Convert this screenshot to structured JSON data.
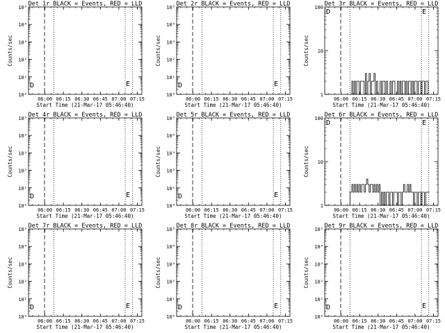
{
  "window": {
    "title": ""
  },
  "xlabel": "Start Time (21-Mar-17 05:46:40)",
  "ylabel": "Counts/sec",
  "x_tick_labels": [
    "06:00",
    "06:15",
    "06:30",
    "06:45",
    "07:00",
    "07:15"
  ],
  "markers": {
    "start": "D",
    "end": "E"
  },
  "chart_data": [
    {
      "type": "line",
      "title": "Det 1r BLACK = Events, RED = LLD",
      "yscale": "log",
      "ylim": [
        1,
        100000
      ],
      "y_tick_labels": [
        "10⁰",
        "10¹",
        "10²",
        "10³",
        "10⁴",
        "10⁵"
      ],
      "xlim_min": [
        0,
        92
      ],
      "vlines_min": [
        13,
        20.5,
        78.5,
        84.5
      ],
      "series": []
    },
    {
      "type": "line",
      "title": "Det 2r BLACK = Events, RED = LLD",
      "yscale": "log",
      "ylim": [
        1,
        100000
      ],
      "y_tick_labels": [
        "10⁰",
        "10¹",
        "10²",
        "10³",
        "10⁴",
        "10⁵"
      ],
      "xlim_min": [
        0,
        92
      ],
      "vlines_min": [
        13,
        20.5,
        78.5,
        84.5
      ],
      "series": []
    },
    {
      "type": "line",
      "title": "Det 3r BLACK = Events, RED = LLD",
      "yscale": "log",
      "ylim": [
        1,
        100
      ],
      "y_tick_labels": [
        "1",
        "10",
        "100"
      ],
      "xlim_min": [
        0,
        92
      ],
      "vlines_min": [
        13,
        20.5,
        78.5,
        84.5
      ],
      "series": [
        {
          "x_min": [
            20.5,
            22,
            23,
            24,
            25,
            26,
            27,
            28,
            29,
            30,
            31,
            32,
            33,
            34,
            35,
            36,
            37,
            38,
            39,
            40,
            41,
            42,
            43,
            44,
            45,
            46,
            47,
            48,
            49,
            50,
            51,
            52,
            53,
            54,
            55,
            56,
            57,
            58,
            59,
            60,
            61,
            62,
            63,
            64,
            65,
            66,
            67,
            68,
            69,
            70,
            71,
            72,
            73,
            74,
            75,
            76,
            77,
            78,
            79,
            80,
            81,
            82,
            83,
            84,
            85
          ],
          "y": [
            1,
            2,
            1,
            2,
            1,
            2,
            2,
            1,
            2,
            2,
            2,
            1,
            3,
            1,
            2,
            3,
            1,
            2,
            2,
            3,
            1,
            2,
            1,
            1,
            2,
            1,
            2,
            2,
            1,
            2,
            1,
            1,
            2,
            1,
            2,
            2,
            1,
            1,
            2,
            1,
            2,
            1,
            2,
            2,
            1,
            2,
            1,
            2,
            2,
            1,
            2,
            1,
            2,
            2,
            1,
            2,
            2,
            1,
            2,
            2,
            1,
            2,
            2,
            1,
            1
          ]
        }
      ]
    },
    {
      "type": "line",
      "title": "Det 4r BLACK = Events, RED = LLD",
      "yscale": "log",
      "ylim": [
        1,
        100000
      ],
      "y_tick_labels": [
        "10⁰",
        "10¹",
        "10²",
        "10³",
        "10⁴",
        "10⁵"
      ],
      "xlim_min": [
        0,
        92
      ],
      "vlines_min": [
        13,
        20.5,
        78.5,
        84.5
      ],
      "series": []
    },
    {
      "type": "line",
      "title": "Det 5r BLACK = Events, RED = LLD",
      "yscale": "log",
      "ylim": [
        1,
        100000
      ],
      "y_tick_labels": [
        "10⁰",
        "10¹",
        "10²",
        "10³",
        "10⁴",
        "10⁵"
      ],
      "xlim_min": [
        0,
        92
      ],
      "vlines_min": [
        13,
        20.5,
        78.5,
        84.5
      ],
      "series": []
    },
    {
      "type": "line",
      "title": "Det 6r BLACK = Events, RED = LLD",
      "yscale": "log",
      "ylim": [
        1,
        100
      ],
      "y_tick_labels": [
        "1",
        "10",
        "100"
      ],
      "xlim_min": [
        0,
        92
      ],
      "vlines_min": [
        13,
        20.5,
        78.5,
        84.5
      ],
      "series": [
        {
          "x_min": [
            20.5,
            22,
            23,
            24,
            25,
            26,
            27,
            28,
            29,
            30,
            31,
            32,
            33,
            34,
            35,
            36,
            37,
            38,
            39,
            40,
            41,
            42,
            43,
            44,
            45,
            46,
            47,
            48,
            49,
            50,
            51,
            52,
            53,
            54,
            55,
            56,
            57,
            58,
            59,
            60,
            61,
            62,
            63,
            64,
            65,
            66,
            67,
            68,
            69,
            70,
            71,
            72,
            73,
            74,
            75,
            76,
            77,
            78,
            79,
            80,
            81,
            82,
            83,
            84,
            85
          ],
          "y": [
            2,
            3,
            2,
            3,
            2,
            3,
            2,
            3,
            2,
            3,
            3,
            2,
            3,
            4,
            3,
            2,
            3,
            3,
            2,
            3,
            2,
            3,
            2,
            3,
            1,
            2,
            1,
            2,
            1,
            2,
            2,
            1,
            2,
            2,
            1,
            2,
            2,
            2,
            1,
            2,
            2,
            1,
            2,
            3,
            2,
            2,
            3,
            2,
            3,
            2,
            2,
            1,
            2,
            2,
            1,
            2,
            2,
            1,
            2,
            2,
            1,
            2,
            2,
            2,
            2
          ]
        }
      ]
    },
    {
      "type": "line",
      "title": "Det 7r BLACK = Events, RED = LLD",
      "yscale": "log",
      "ylim": [
        1,
        100000
      ],
      "y_tick_labels": [
        "10⁰",
        "10¹",
        "10²",
        "10³",
        "10⁴",
        "10⁵"
      ],
      "xlim_min": [
        0,
        92
      ],
      "vlines_min": [
        13,
        20.5,
        78.5,
        84.5
      ],
      "series": []
    },
    {
      "type": "line",
      "title": "Det 8r BLACK = Events, RED = LLD",
      "yscale": "log",
      "ylim": [
        1,
        100000
      ],
      "y_tick_labels": [
        "10⁰",
        "10¹",
        "10²",
        "10³",
        "10⁴",
        "10⁵"
      ],
      "xlim_min": [
        0,
        92
      ],
      "vlines_min": [
        13,
        20.5,
        78.5,
        84.5
      ],
      "series": []
    },
    {
      "type": "line",
      "title": "Det 9r BLACK = Events, RED = LLD",
      "yscale": "log",
      "ylim": [
        1,
        100000
      ],
      "y_tick_labels": [
        "10⁰",
        "10¹",
        "10²",
        "10³",
        "10⁴",
        "10⁵"
      ],
      "xlim_min": [
        0,
        92
      ],
      "vlines_min": [
        13,
        20.5,
        78.5,
        84.5
      ],
      "series": []
    }
  ]
}
